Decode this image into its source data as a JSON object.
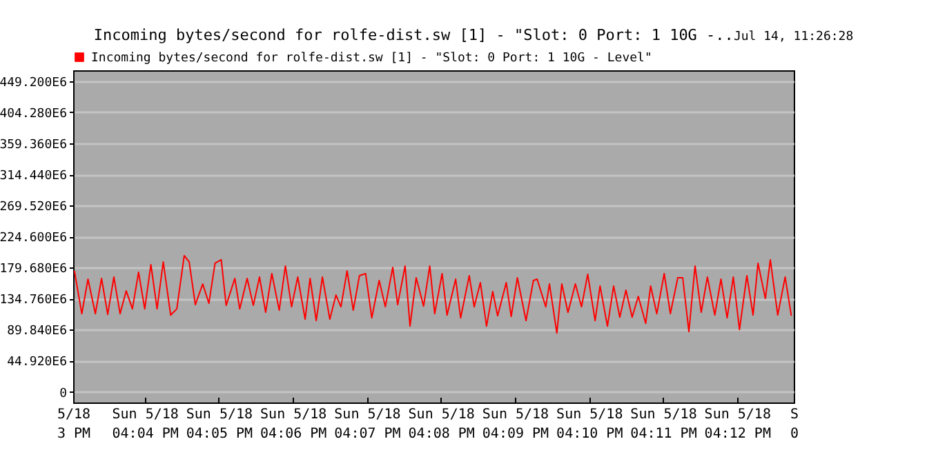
{
  "chart_data": {
    "type": "line",
    "title": "Incoming bytes/second for rolfe-dist.sw [1] - \"Slot: 0 Port: 1 10G -..",
    "annotations": [
      "Jul 14, 11:26:28"
    ],
    "x": [
      "--05-18T16:03:03",
      "--05-18T16:03:09",
      "--05-18T16:03:14",
      "--05-18T16:03:20",
      "--05-18T16:03:25",
      "--05-18T16:03:30",
      "--05-18T16:03:35",
      "--05-18T16:03:40",
      "--05-18T16:03:45",
      "--05-18T16:03:50",
      "--05-18T16:03:55",
      "--05-18T16:04:00",
      "--05-18T16:04:05",
      "--05-18T16:04:10",
      "--05-18T16:04:15",
      "--05-18T16:04:21",
      "--05-18T16:04:26",
      "--05-18T16:04:32",
      "--05-18T16:04:36",
      "--05-18T16:04:41",
      "--05-18T16:04:47",
      "--05-18T16:04:52",
      "--05-18T16:04:57",
      "--05-18T16:05:02",
      "--05-18T16:05:06",
      "--05-18T16:05:13",
      "--05-18T16:05:17",
      "--05-18T16:05:23",
      "--05-18T16:05:28",
      "--05-18T16:05:33",
      "--05-18T16:05:38",
      "--05-18T16:05:43",
      "--05-18T16:05:49",
      "--05-18T16:05:54",
      "--05-18T16:05:59",
      "--05-18T16:06:04",
      "--05-18T16:06:10",
      "--05-18T16:06:14",
      "--05-18T16:06:19",
      "--05-18T16:06:24",
      "--05-18T16:06:30",
      "--05-18T16:06:35",
      "--05-18T16:06:39",
      "--05-18T16:06:44",
      "--05-18T16:06:49",
      "--05-18T16:06:54",
      "--05-18T16:06:59",
      "--05-18T16:07:04",
      "--05-18T16:07:10",
      "--05-18T16:07:15",
      "--05-18T16:07:21",
      "--05-18T16:07:25",
      "--05-18T16:07:31",
      "--05-18T16:07:35",
      "--05-18T16:07:40",
      "--05-18T16:07:46",
      "--05-18T16:07:51",
      "--05-18T16:07:55",
      "--05-18T16:08:01",
      "--05-18T16:08:05",
      "--05-18T16:08:12",
      "--05-18T16:08:16",
      "--05-18T16:08:23",
      "--05-18T16:08:27",
      "--05-18T16:08:32",
      "--05-18T16:08:37",
      "--05-18T16:08:42",
      "--05-18T16:08:46",
      "--05-18T16:08:53",
      "--05-18T16:08:57",
      "--05-18T16:09:02",
      "--05-18T16:09:09",
      "--05-18T16:09:15",
      "--05-18T16:09:18",
      "--05-18T16:09:25",
      "--05-18T16:09:28",
      "--05-18T16:09:34",
      "--05-18T16:09:38",
      "--05-18T16:09:43",
      "--05-18T16:09:49",
      "--05-18T16:09:54",
      "--05-18T16:09:59",
      "--05-18T16:10:05",
      "--05-18T16:10:09",
      "--05-18T16:10:15",
      "--05-18T16:10:20",
      "--05-18T16:10:25",
      "--05-18T16:10:30",
      "--05-18T16:10:35",
      "--05-18T16:10:40",
      "--05-18T16:10:46",
      "--05-18T16:10:50",
      "--05-18T16:10:55",
      "--05-18T16:11:01",
      "--05-18T16:11:06",
      "--05-18T16:11:12",
      "--05-18T16:11:16",
      "--05-18T16:11:21",
      "--05-18T16:11:26",
      "--05-18T16:11:31",
      "--05-18T16:11:36",
      "--05-18T16:11:42",
      "--05-18T16:11:47",
      "--05-18T16:11:52",
      "--05-18T16:11:57",
      "--05-18T16:12:02",
      "--05-18T16:12:08",
      "--05-18T16:12:13",
      "--05-18T16:12:17",
      "--05-18T16:12:23",
      "--05-18T16:12:27",
      "--05-18T16:12:33",
      "--05-18T16:12:39",
      "--05-18T16:12:44"
    ],
    "series": [
      {
        "name": "Incoming bytes/second for rolfe-dist.sw [1] - \"Slot: 0 Port: 1 10G - Level\"",
        "color": "#ff0000",
        "values": [
          175000000.0,
          113000000.0,
          163000000.0,
          113000000.0,
          164000000.0,
          112000000.0,
          166000000.0,
          113000000.0,
          146000000.0,
          120000000.0,
          173000000.0,
          120000000.0,
          184000000.0,
          120000000.0,
          188000000.0,
          111000000.0,
          120000000.0,
          197000000.0,
          188000000.0,
          126000000.0,
          156000000.0,
          128000000.0,
          186000000.0,
          191000000.0,
          125000000.0,
          164000000.0,
          120000000.0,
          164000000.0,
          125000000.0,
          166000000.0,
          115000000.0,
          171000000.0,
          118000000.0,
          182000000.0,
          123000000.0,
          166000000.0,
          105000000.0,
          164000000.0,
          103000000.0,
          166000000.0,
          105000000.0,
          140000000.0,
          123000000.0,
          175000000.0,
          118000000.0,
          168000000.0,
          171000000.0,
          107000000.0,
          161000000.0,
          123000000.0,
          180000000.0,
          126000000.0,
          182000000.0,
          95000000.0,
          165000000.0,
          124000000.0,
          182000000.0,
          113000000.0,
          171000000.0,
          111000000.0,
          163000000.0,
          107000000.0,
          168000000.0,
          123000000.0,
          158000000.0,
          95000000.0,
          145000000.0,
          110000000.0,
          158000000.0,
          109000000.0,
          165000000.0,
          103000000.0,
          161000000.0,
          163000000.0,
          123000000.0,
          156000000.0,
          85000000.0,
          156000000.0,
          115000000.0,
          156000000.0,
          123000000.0,
          170000000.0,
          103000000.0,
          153000000.0,
          95000000.0,
          153000000.0,
          108000000.0,
          147000000.0,
          108000000.0,
          138000000.0,
          99000000.0,
          153000000.0,
          113000000.0,
          171000000.0,
          113000000.0,
          165000000.0,
          165000000.0,
          87000000.0,
          182000000.0,
          115000000.0,
          166000000.0,
          111000000.0,
          163000000.0,
          107000000.0,
          166000000.0,
          90000000.0,
          168000000.0,
          111000000.0,
          186000000.0,
          135000000.0,
          191000000.0,
          111000000.0,
          166000000.0,
          110000000.0
        ]
      }
    ],
    "xlim": [
      "--05-18T16:03:02",
      "--05-18T16:12:46"
    ],
    "xticks": [
      {
        "value": "--05-18T16:03:02",
        "label": "5/18\n3 PM"
      },
      {
        "value": "--05-18T16:04",
        "label": "Sun 5/18\n04:04 PM"
      },
      {
        "value": "--05-18T16:05",
        "label": "Sun 5/18\n04:05 PM"
      },
      {
        "value": "--05-18T16:06",
        "label": "Sun 5/18\n04:06 PM"
      },
      {
        "value": "--05-18T16:07",
        "label": "Sun 5/18\n04:07 PM"
      },
      {
        "value": "--05-18T16:08",
        "label": "Sun 5/18\n04:08 PM"
      },
      {
        "value": "--05-18T16:09",
        "label": "Sun 5/18\n04:09 PM"
      },
      {
        "value": "--05-18T16:10",
        "label": "Sun 5/18\n04:10 PM"
      },
      {
        "value": "--05-18T16:11",
        "label": "Sun 5/18\n04:11 PM"
      },
      {
        "value": "--05-18T16:12",
        "label": "Sun 5/18\n04:12 PM"
      },
      {
        "value": "--05-18T16:12:46",
        "label": "S\n0"
      }
    ],
    "ylim": [
      -15400000.0,
      465000000.0
    ],
    "yticks": [
      {
        "value": 0,
        "label": "0"
      },
      {
        "value": 44920000.0,
        "label": "44.920E6"
      },
      {
        "value": 89840000.0,
        "label": "89.840E6"
      },
      {
        "value": 134760000.0,
        "label": "134.760E6"
      },
      {
        "value": 179680000.0,
        "label": "179.680E6"
      },
      {
        "value": 224600000.0,
        "label": "224.600E6"
      },
      {
        "value": 269520000.0,
        "label": "269.520E6"
      },
      {
        "value": 314440000.0,
        "label": "314.440E6"
      },
      {
        "value": 359360000.0,
        "label": "359.360E6"
      },
      {
        "value": 404280000.0,
        "label": "404.280E6"
      },
      {
        "value": 449200000.0,
        "label": "449.200E6"
      }
    ],
    "grid": "y",
    "legend": "top left"
  }
}
